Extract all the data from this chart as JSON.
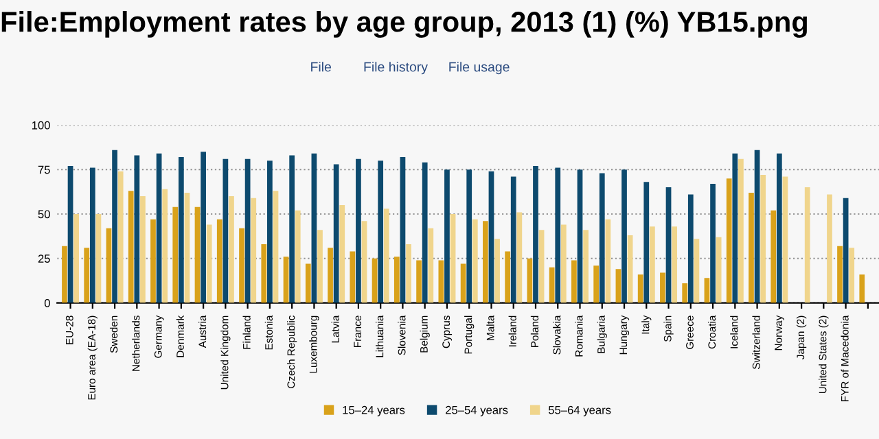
{
  "chart_data": {
    "type": "bar",
    "title": "File:Employment rates by age group, 2013 (1) (%) YB15.png",
    "annotations": [
      "File",
      "File history",
      "File usage"
    ],
    "categories": [
      "EU-28",
      "Euro area (EA-18)",
      "Sweden",
      "Netherlands",
      "Germany",
      "Denmark",
      "Austria",
      "United Kingdom",
      "Finland",
      "Estonia",
      "Czech Republic",
      "Luxembourg",
      "Latvia",
      "France",
      "Lithuania",
      "Slovenia",
      "Belgium",
      "Cyprus",
      "Portugal",
      "Malta",
      "Ireland",
      "Poland",
      "Slovakia",
      "Romania",
      "Bulgaria",
      "Hungary",
      "Italy",
      "Spain",
      "Greece",
      "Croatia",
      "Iceland",
      "Switzerland",
      "Norway",
      "Japan (2)",
      "United States (2)",
      "FYR of Macedonia",
      null
    ],
    "series": [
      {
        "name": "15–24 years",
        "color": "#d9a21b",
        "values": [
          32,
          31,
          42,
          63,
          47,
          54,
          54,
          47,
          42,
          33,
          26,
          22,
          31,
          29,
          25,
          26,
          24,
          24,
          22,
          46,
          29,
          25,
          20,
          24,
          21,
          19,
          16,
          17,
          11,
          14,
          70,
          62,
          52,
          null,
          null,
          32,
          16
        ]
      },
      {
        "name": "25–54 years",
        "color": "#0d4a6e",
        "values": [
          77,
          76,
          86,
          83,
          84,
          82,
          85,
          81,
          81,
          80,
          83,
          84,
          78,
          81,
          80,
          82,
          79,
          75,
          75,
          74,
          71,
          77,
          76,
          75,
          73,
          75,
          68,
          65,
          61,
          67,
          84,
          86,
          84,
          null,
          null,
          59,
          null
        ]
      },
      {
        "name": "55–64 years",
        "color": "#f0d58c",
        "values": [
          50,
          50,
          74,
          60,
          64,
          62,
          44,
          60,
          59,
          63,
          52,
          41,
          55,
          46,
          53,
          33,
          42,
          50,
          47,
          36,
          51,
          41,
          44,
          41,
          47,
          38,
          43,
          43,
          36,
          37,
          81,
          72,
          71,
          65,
          61,
          31,
          null
        ]
      }
    ],
    "ylim": [
      0,
      100
    ],
    "yticks": [
      0,
      25,
      50,
      75,
      100
    ],
    "grid": "y",
    "legend": "bottom"
  }
}
